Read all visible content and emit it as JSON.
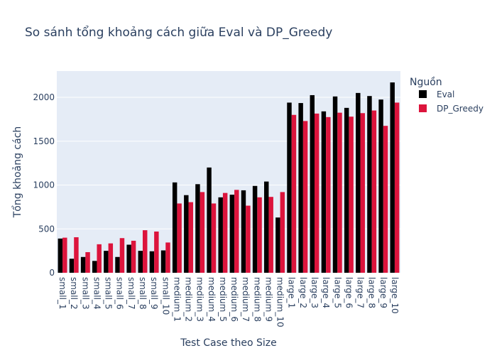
{
  "chart_data": {
    "type": "bar",
    "title": "So sánh tổng khoảng cách giữa Eval và DP_Greedy",
    "xlabel": "Test Case theo Size",
    "ylabel": "Tổng khoảng cách",
    "ylim": [
      0,
      2300
    ],
    "yticks": [
      0,
      500,
      1000,
      1500,
      2000
    ],
    "grid": true,
    "legend_position": "top-right",
    "legend_title": "Nguồn",
    "categories": [
      "small_1",
      "small_2",
      "small_3",
      "small_4",
      "small_5",
      "small_6",
      "small_7",
      "small_8",
      "small_9",
      "small_10",
      "medium_1",
      "medium_2",
      "medium_3",
      "medium_4",
      "medium_5",
      "medium_6",
      "medium_7",
      "medium_8",
      "medium_9",
      "medium_10",
      "large_1",
      "large_2",
      "large_3",
      "large_4",
      "large_5",
      "large_6",
      "large_7",
      "large_8",
      "large_9",
      "large_10"
    ],
    "series": [
      {
        "name": "Eval",
        "color": "#000000",
        "values": [
          390,
          160,
          180,
          135,
          250,
          180,
          320,
          250,
          245,
          255,
          1030,
          885,
          1010,
          1200,
          860,
          890,
          940,
          990,
          1040,
          630,
          1940,
          1935,
          2025,
          1840,
          2010,
          1880,
          2050,
          2015,
          1975,
          2170
        ]
      },
      {
        "name": "DP_Greedy",
        "color": "#DC143C",
        "values": [
          400,
          405,
          235,
          325,
          335,
          395,
          365,
          485,
          470,
          345,
          790,
          805,
          920,
          790,
          910,
          945,
          765,
          860,
          865,
          920,
          1800,
          1730,
          1815,
          1775,
          1825,
          1780,
          1820,
          1850,
          1675,
          1940
        ]
      }
    ]
  },
  "colors": {
    "plot_background": "#E5ECF6",
    "grid": "#ffffff",
    "text": "#2a3f5f"
  }
}
